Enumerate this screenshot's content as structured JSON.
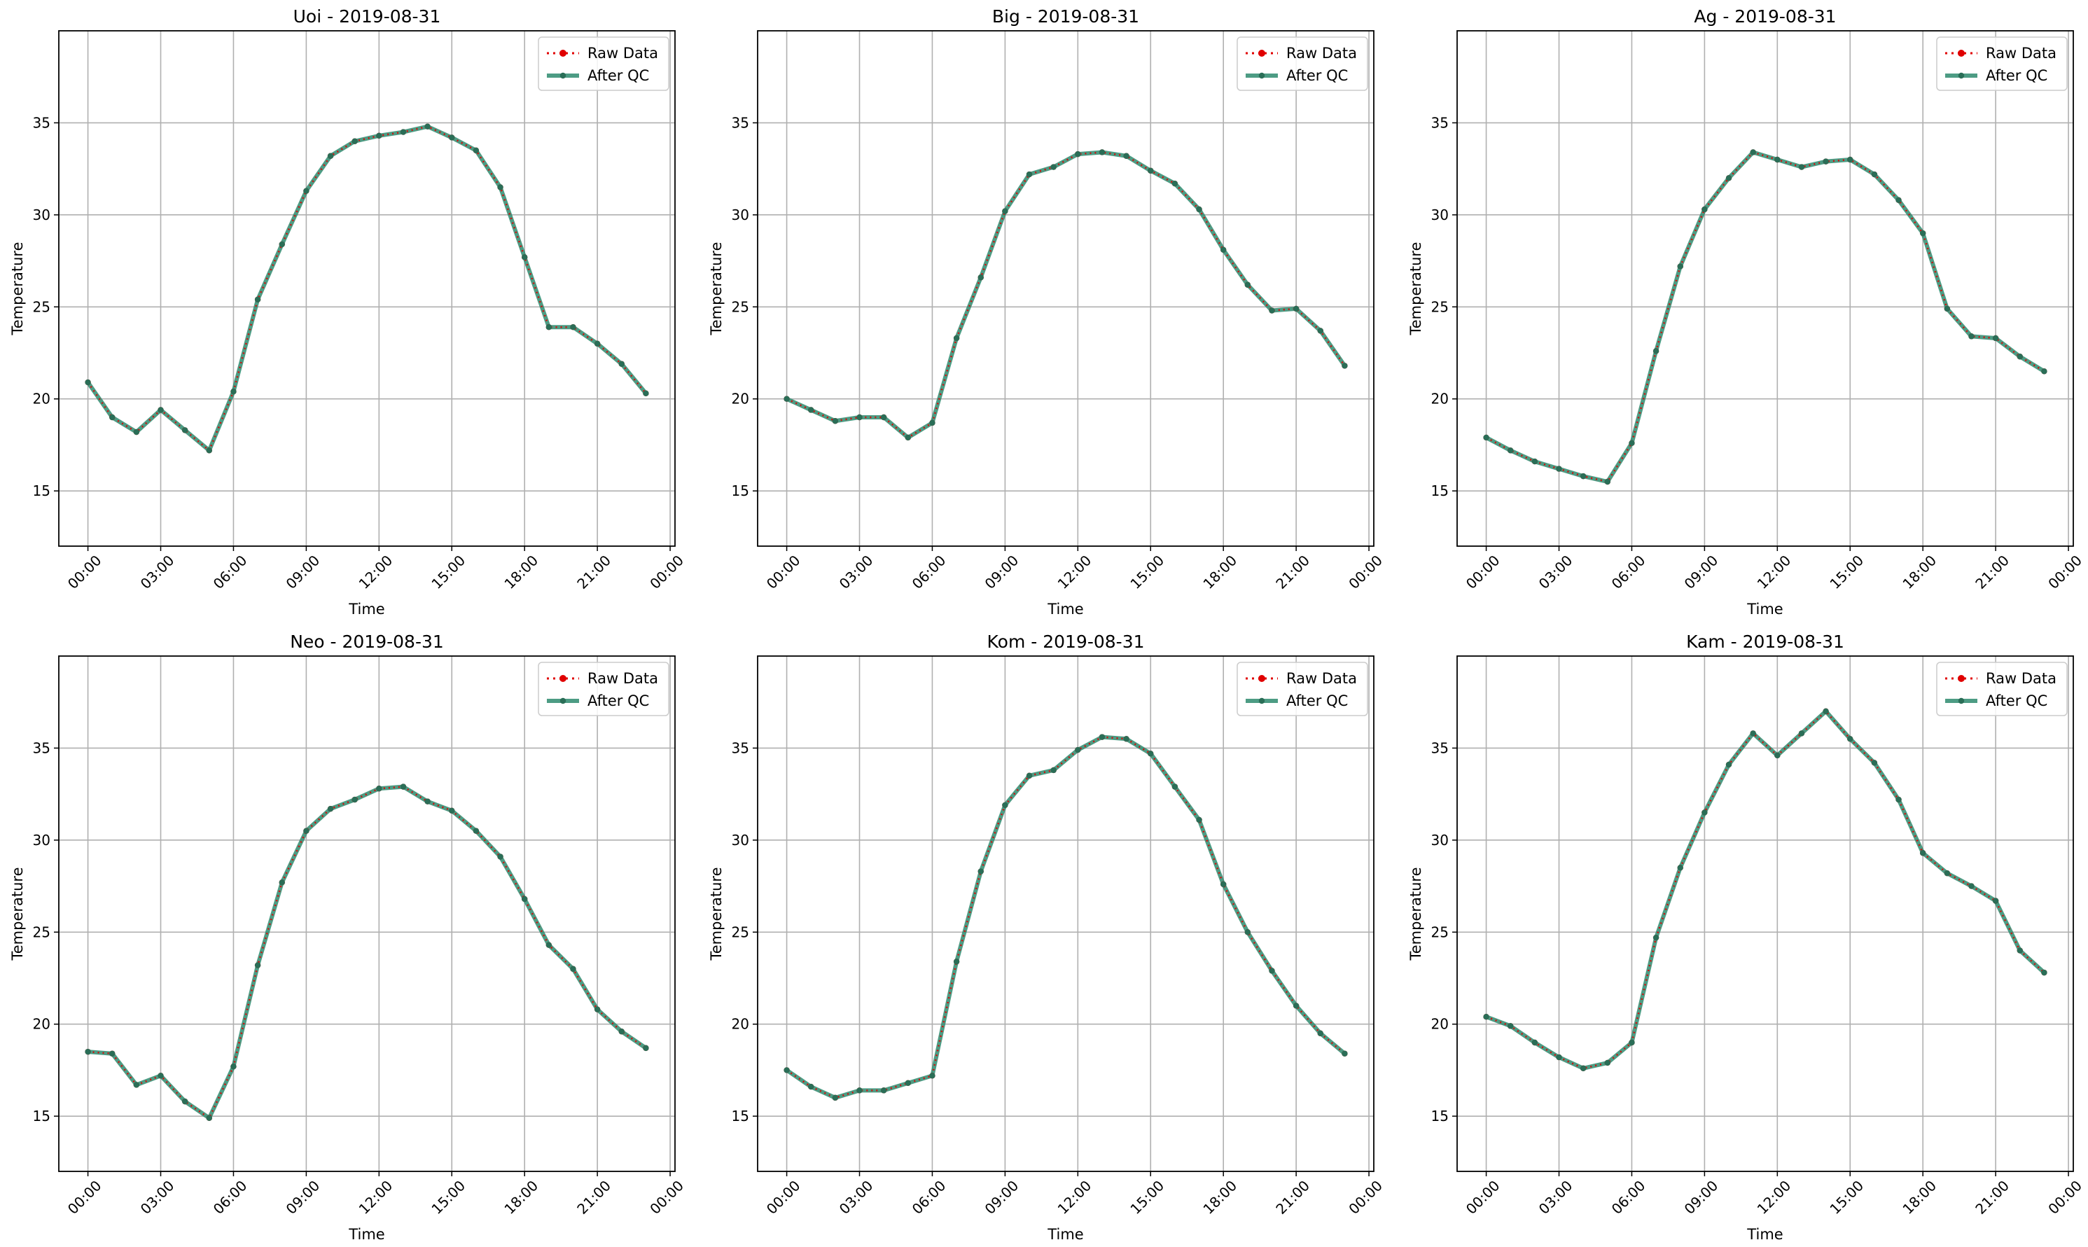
{
  "colors": {
    "raw": "#e00000",
    "qc": "#2e8b6e",
    "grid": "#b0b0b0",
    "axis": "#000000"
  },
  "chart_data": [
    {
      "type": "line",
      "title": "Uoi - 2019-08-31",
      "xlabel": "Time",
      "ylabel": "Temperature",
      "x_tick_labels": [
        "00:00",
        "03:00",
        "06:00",
        "09:00",
        "12:00",
        "15:00",
        "18:00",
        "21:00",
        "00:00"
      ],
      "y_ticks": [
        "15",
        "20",
        "25",
        "30",
        "35"
      ],
      "xlim": [
        -1.2,
        24.2
      ],
      "ylim": [
        12,
        40
      ],
      "grid": true,
      "legend": "top-right",
      "x": [
        0,
        1,
        2,
        3,
        4,
        5,
        6,
        7,
        8,
        9,
        10,
        11,
        12,
        13,
        14,
        15,
        16,
        17,
        18,
        19,
        20,
        21,
        22,
        23
      ],
      "series": [
        {
          "name": "Raw Data",
          "values": [
            20.9,
            19.0,
            18.2,
            19.4,
            18.3,
            17.2,
            20.4,
            25.4,
            28.4,
            31.3,
            33.2,
            34.0,
            34.3,
            34.5,
            34.8,
            34.2,
            33.5,
            31.5,
            27.7,
            23.9,
            23.9,
            23.0,
            21.9,
            20.3
          ]
        },
        {
          "name": "After QC",
          "values": [
            20.9,
            19.0,
            18.2,
            19.4,
            18.3,
            17.2,
            20.4,
            25.4,
            28.4,
            31.3,
            33.2,
            34.0,
            34.3,
            34.5,
            34.8,
            34.2,
            33.5,
            31.5,
            27.7,
            23.9,
            23.9,
            23.0,
            21.9,
            20.3
          ]
        }
      ]
    },
    {
      "type": "line",
      "title": "Big - 2019-08-31",
      "xlabel": "Time",
      "ylabel": "Temperature",
      "x_tick_labels": [
        "00:00",
        "03:00",
        "06:00",
        "09:00",
        "12:00",
        "15:00",
        "18:00",
        "21:00",
        "00:00"
      ],
      "y_ticks": [
        "15",
        "20",
        "25",
        "30",
        "35"
      ],
      "xlim": [
        -1.2,
        24.2
      ],
      "ylim": [
        12,
        40
      ],
      "grid": true,
      "legend": "top-right",
      "x": [
        0,
        1,
        2,
        3,
        4,
        5,
        6,
        7,
        8,
        9,
        10,
        11,
        12,
        13,
        14,
        15,
        16,
        17,
        18,
        19,
        20,
        21,
        22,
        23
      ],
      "series": [
        {
          "name": "Raw Data",
          "values": [
            20.0,
            19.4,
            18.8,
            19.0,
            19.0,
            17.9,
            18.7,
            23.3,
            26.6,
            30.2,
            32.2,
            32.6,
            33.3,
            33.4,
            33.2,
            32.4,
            31.7,
            30.3,
            28.1,
            26.2,
            24.8,
            24.9,
            23.7,
            21.8
          ]
        },
        {
          "name": "After QC",
          "values": [
            20.0,
            19.4,
            18.8,
            19.0,
            19.0,
            17.9,
            18.7,
            23.3,
            26.6,
            30.2,
            32.2,
            32.6,
            33.3,
            33.4,
            33.2,
            32.4,
            31.7,
            30.3,
            28.1,
            26.2,
            24.8,
            24.9,
            23.7,
            21.8
          ]
        }
      ]
    },
    {
      "type": "line",
      "title": "Ag - 2019-08-31",
      "xlabel": "Time",
      "ylabel": "Temperature",
      "x_tick_labels": [
        "00:00",
        "03:00",
        "06:00",
        "09:00",
        "12:00",
        "15:00",
        "18:00",
        "21:00",
        "00:00"
      ],
      "y_ticks": [
        "15",
        "20",
        "25",
        "30",
        "35"
      ],
      "xlim": [
        -1.2,
        24.2
      ],
      "ylim": [
        12,
        40
      ],
      "grid": true,
      "legend": "top-right",
      "x": [
        0,
        1,
        2,
        3,
        4,
        5,
        6,
        7,
        8,
        9,
        10,
        11,
        12,
        13,
        14,
        15,
        16,
        17,
        18,
        19,
        20,
        21,
        22,
        23
      ],
      "series": [
        {
          "name": "Raw Data",
          "values": [
            17.9,
            17.2,
            16.6,
            16.2,
            15.8,
            15.5,
            17.6,
            22.6,
            27.2,
            30.3,
            32.0,
            33.4,
            33.0,
            32.6,
            32.9,
            33.0,
            32.2,
            30.8,
            29.0,
            24.9,
            23.4,
            23.3,
            22.3,
            21.5
          ]
        },
        {
          "name": "After QC",
          "values": [
            17.9,
            17.2,
            16.6,
            16.2,
            15.8,
            15.5,
            17.6,
            22.6,
            27.2,
            30.3,
            32.0,
            33.4,
            33.0,
            32.6,
            32.9,
            33.0,
            32.2,
            30.8,
            29.0,
            24.9,
            23.4,
            23.3,
            22.3,
            21.5
          ]
        }
      ]
    },
    {
      "type": "line",
      "title": "Neo - 2019-08-31",
      "xlabel": "Time",
      "ylabel": "Temperature",
      "x_tick_labels": [
        "00:00",
        "03:00",
        "06:00",
        "09:00",
        "12:00",
        "15:00",
        "18:00",
        "21:00",
        "00:00"
      ],
      "y_ticks": [
        "15",
        "20",
        "25",
        "30",
        "35"
      ],
      "xlim": [
        -1.2,
        24.2
      ],
      "ylim": [
        12,
        40
      ],
      "grid": true,
      "legend": "top-right",
      "x": [
        0,
        1,
        2,
        3,
        4,
        5,
        6,
        7,
        8,
        9,
        10,
        11,
        12,
        13,
        14,
        15,
        16,
        17,
        18,
        19,
        20,
        21,
        22,
        23
      ],
      "series": [
        {
          "name": "Raw Data",
          "values": [
            18.5,
            18.4,
            16.7,
            17.2,
            15.8,
            14.9,
            17.7,
            23.2,
            27.7,
            30.5,
            31.7,
            32.2,
            32.8,
            32.9,
            32.1,
            31.6,
            30.5,
            29.1,
            26.8,
            24.3,
            23.0,
            20.8,
            19.6,
            18.7
          ]
        },
        {
          "name": "After QC",
          "values": [
            18.5,
            18.4,
            16.7,
            17.2,
            15.8,
            14.9,
            17.7,
            23.2,
            27.7,
            30.5,
            31.7,
            32.2,
            32.8,
            32.9,
            32.1,
            31.6,
            30.5,
            29.1,
            26.8,
            24.3,
            23.0,
            20.8,
            19.6,
            18.7
          ]
        }
      ]
    },
    {
      "type": "line",
      "title": "Kom - 2019-08-31",
      "xlabel": "Time",
      "ylabel": "Temperature",
      "x_tick_labels": [
        "00:00",
        "03:00",
        "06:00",
        "09:00",
        "12:00",
        "15:00",
        "18:00",
        "21:00",
        "00:00"
      ],
      "y_ticks": [
        "15",
        "20",
        "25",
        "30",
        "35"
      ],
      "xlim": [
        -1.2,
        24.2
      ],
      "ylim": [
        12,
        40
      ],
      "grid": true,
      "legend": "top-right",
      "x": [
        0,
        1,
        2,
        3,
        4,
        5,
        6,
        7,
        8,
        9,
        10,
        11,
        12,
        13,
        14,
        15,
        16,
        17,
        18,
        19,
        20,
        21,
        22,
        23
      ],
      "series": [
        {
          "name": "Raw Data",
          "values": [
            17.5,
            16.6,
            16.0,
            16.4,
            16.4,
            16.8,
            17.2,
            23.4,
            28.3,
            31.9,
            33.5,
            33.8,
            34.9,
            35.6,
            35.5,
            34.7,
            32.9,
            31.1,
            27.6,
            25.0,
            22.9,
            21.0,
            19.5,
            18.4
          ]
        },
        {
          "name": "After QC",
          "values": [
            17.5,
            16.6,
            16.0,
            16.4,
            16.4,
            16.8,
            17.2,
            23.4,
            28.3,
            31.9,
            33.5,
            33.8,
            34.9,
            35.6,
            35.5,
            34.7,
            32.9,
            31.1,
            27.6,
            25.0,
            22.9,
            21.0,
            19.5,
            18.4
          ]
        }
      ]
    },
    {
      "type": "line",
      "title": "Kam - 2019-08-31",
      "xlabel": "Time",
      "ylabel": "Temperature",
      "x_tick_labels": [
        "00:00",
        "03:00",
        "06:00",
        "09:00",
        "12:00",
        "15:00",
        "18:00",
        "21:00",
        "00:00"
      ],
      "y_ticks": [
        "15",
        "20",
        "25",
        "30",
        "35"
      ],
      "xlim": [
        -1.2,
        24.2
      ],
      "ylim": [
        12,
        40
      ],
      "grid": true,
      "legend": "top-right",
      "x": [
        0,
        1,
        2,
        3,
        4,
        5,
        6,
        7,
        8,
        9,
        10,
        11,
        12,
        13,
        14,
        15,
        16,
        17,
        18,
        19,
        20,
        21,
        22,
        23
      ],
      "series": [
        {
          "name": "Raw Data",
          "values": [
            20.4,
            19.9,
            19.0,
            18.2,
            17.6,
            17.9,
            19.0,
            24.7,
            28.5,
            31.5,
            34.1,
            35.8,
            34.6,
            35.8,
            37.0,
            35.5,
            34.2,
            32.2,
            29.3,
            28.2,
            27.5,
            26.7,
            24.0,
            22.8
          ]
        },
        {
          "name": "After QC",
          "values": [
            20.4,
            19.9,
            19.0,
            18.2,
            17.6,
            17.9,
            19.0,
            24.7,
            28.5,
            31.5,
            34.1,
            35.8,
            34.6,
            35.8,
            37.0,
            35.5,
            34.2,
            32.2,
            29.3,
            28.2,
            27.5,
            26.7,
            24.0,
            22.8
          ]
        }
      ]
    }
  ]
}
